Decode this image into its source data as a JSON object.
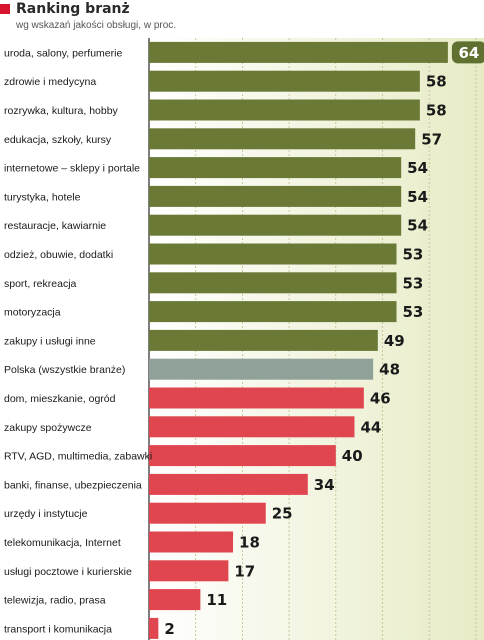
{
  "header": {
    "title": "Ranking branż",
    "subtitle": "wg wskazań jakości obsługi, w proc."
  },
  "colors": {
    "accent": "#d8152f",
    "bar_top": "#6a7a36",
    "bar_highlight": "#8fa199",
    "bar_bottom": "#e0464f",
    "panel": "#eef1cf",
    "badge": "#5f7030"
  },
  "chart_data": {
    "type": "bar",
    "orientation": "horizontal",
    "title": "Ranking branż",
    "subtitle": "wg wskazań jakości obsługi, w proc.",
    "xlabel": "",
    "ylabel": "",
    "xlim": [
      0,
      70
    ],
    "grid": true,
    "highlighted_category": "Polska (wszystkie branże)",
    "categories": [
      "uroda, salony, perfumerie",
      "zdrowie i medycyna",
      "rozrywka, kultura, hobby",
      "edukacja, szkoły, kursy",
      "internetowe – sklepy i portale",
      "turystyka, hotele",
      "restauracje, kawiarnie",
      "odzież, obuwie, dodatki",
      "sport, rekreacja",
      "motoryzacja",
      "zakupy i usługi inne",
      "Polska (wszystkie branże)",
      "dom, mieszkanie, ogród",
      "zakupy  spożywcze",
      "RTV, AGD, multimedia, zabawki",
      "banki, finanse, ubezpieczenia",
      "urzędy i instytucje",
      "telekomunikacja, Internet",
      "usługi pocztowe i kurierskie",
      "telewizja, radio, prasa",
      "transport i komunikacja"
    ],
    "values": [
      64,
      58,
      58,
      57,
      54,
      54,
      54,
      53,
      53,
      53,
      49,
      48,
      46,
      44,
      40,
      34,
      25,
      18,
      17,
      11,
      2
    ],
    "value_labels": [
      "64",
      "58",
      "58",
      "57",
      "54",
      "54",
      "54",
      "53",
      "53",
      "53",
      "49",
      "48",
      "46",
      "44",
      "40",
      "34",
      "25",
      "18",
      "17",
      "11",
      "2"
    ]
  }
}
